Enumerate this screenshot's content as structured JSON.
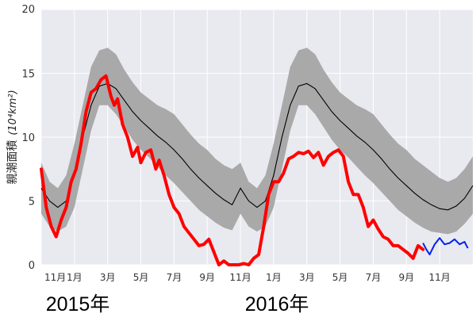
{
  "chart_data": {
    "type": "line",
    "ylabel_text": "親潮面積",
    "ylabel_unit": "(10⁴km²)",
    "ylim": [
      0,
      20
    ],
    "yticks": [
      0,
      5,
      10,
      15,
      20
    ],
    "xlim": [
      0,
      26
    ],
    "xticks": [
      {
        "x": 0,
        "label": "11月"
      },
      {
        "x": 2,
        "label": "1月"
      },
      {
        "x": 4,
        "label": "3月"
      },
      {
        "x": 6,
        "label": "5月"
      },
      {
        "x": 8,
        "label": "7月"
      },
      {
        "x": 10,
        "label": "9月"
      },
      {
        "x": 12,
        "label": "11月"
      },
      {
        "x": 14,
        "label": "1月"
      },
      {
        "x": 16,
        "label": "3月"
      },
      {
        "x": 18,
        "label": "5月"
      },
      {
        "x": 20,
        "label": "7月"
      },
      {
        "x": 22,
        "label": "9月"
      },
      {
        "x": 24,
        "label": "11月"
      }
    ],
    "year_labels": [
      {
        "x": 2.2,
        "label": "2015年"
      },
      {
        "x": 14.2,
        "label": "2016年"
      }
    ],
    "grid": true,
    "colors": {
      "background": "#e9e9f0",
      "grid": "#ffffff",
      "band": "#a9a9a9",
      "mean": "#000000",
      "obs": "#ff0000",
      "recent": "#0022ee"
    },
    "band": {
      "x": [
        0,
        0.5,
        1,
        1.5,
        2,
        2.5,
        3,
        3.5,
        4,
        4.5,
        5,
        5.5,
        6,
        6.5,
        7,
        7.5,
        8,
        8.5,
        9,
        9.5,
        10,
        10.5,
        11,
        11.5,
        12,
        12.5,
        13,
        13.5,
        14,
        14.5,
        15,
        15.5,
        16,
        16.5,
        17,
        17.5,
        18,
        18.5,
        19,
        19.5,
        20,
        20.5,
        21,
        21.5,
        22,
        22.5,
        23,
        23.5,
        24,
        24.5,
        25,
        25.5,
        26
      ],
      "upper": [
        8,
        6.5,
        6,
        7,
        9.5,
        12.5,
        15.5,
        16.8,
        17,
        16.5,
        15.3,
        14.3,
        13.5,
        13,
        12.5,
        12.2,
        11.8,
        11,
        10.2,
        9.5,
        9,
        8.3,
        7.8,
        7.5,
        8,
        6.5,
        6,
        7,
        9.5,
        12.5,
        15.5,
        16.8,
        17,
        16.5,
        15.3,
        14.3,
        13.5,
        13,
        12.5,
        12.2,
        11.8,
        11,
        10.2,
        9.5,
        9,
        8.3,
        7.8,
        7.3,
        6.8,
        6.5,
        6.8,
        7.5,
        8.5
      ],
      "lower": [
        4,
        3,
        2.6,
        3,
        4.5,
        7.5,
        10.5,
        12.5,
        12.5,
        11.8,
        10.8,
        9.8,
        9,
        8.4,
        7.7,
        7,
        6.4,
        5.7,
        5,
        4.3,
        3.8,
        3.3,
        2.9,
        2.7,
        4,
        3,
        2.6,
        3,
        4.5,
        7.5,
        10.5,
        12.5,
        12.5,
        11.8,
        10.8,
        9.8,
        9,
        8.4,
        7.7,
        7,
        6.4,
        5.7,
        5,
        4.3,
        3.8,
        3.3,
        2.9,
        2.6,
        2.5,
        2.4,
        2.6,
        3.2,
        4
      ]
    },
    "series": [
      {
        "x": [
          0,
          0.5,
          1,
          1.5,
          2,
          2.5,
          3,
          3.5,
          4,
          4.5,
          5,
          5.5,
          6,
          6.5,
          7,
          7.5,
          8,
          8.5,
          9,
          9.5,
          10,
          10.5,
          11,
          11.5,
          12,
          12.5,
          13,
          13.5,
          14,
          14.5,
          15,
          15.5,
          16,
          16.5,
          17,
          17.5,
          18,
          18.5,
          19,
          19.5,
          20,
          20.5,
          21,
          21.5,
          22,
          22.5,
          23,
          23.5,
          24,
          24.5,
          25,
          25.5,
          26
        ],
        "values": [
          6,
          5,
          4.5,
          5,
          7,
          10,
          12.5,
          14,
          14.2,
          13.8,
          12.9,
          12,
          11.3,
          10.7,
          10.1,
          9.6,
          9,
          8.3,
          7.5,
          6.8,
          6.2,
          5.6,
          5.1,
          4.7,
          6,
          5,
          4.5,
          5,
          7,
          10,
          12.5,
          14,
          14.2,
          13.8,
          12.9,
          12,
          11.3,
          10.7,
          10.1,
          9.6,
          9,
          8.3,
          7.5,
          6.8,
          6.2,
          5.6,
          5.1,
          4.7,
          4.4,
          4.3,
          4.6,
          5.2,
          6.2
        ]
      },
      {
        "x": [
          0,
          0.3,
          0.6,
          0.9,
          1.2,
          1.5,
          1.8,
          2.1,
          2.4,
          2.7,
          3.0,
          3.3,
          3.6,
          3.9,
          4.2,
          4.4,
          4.6,
          4.9,
          5.2,
          5.5,
          5.8,
          6.0,
          6.3,
          6.6,
          6.9,
          7.1,
          7.4,
          7.7,
          8.0,
          8.3,
          8.6,
          8.9,
          9.2,
          9.5,
          9.8,
          10.1,
          10.4,
          10.7,
          11.0,
          11.3,
          11.6,
          11.9,
          12.2,
          12.5,
          12.8,
          13.1,
          13.4,
          13.7,
          14.0,
          14.3,
          14.6,
          14.9,
          15.2,
          15.5,
          15.8,
          16.1,
          16.4,
          16.7,
          17.0,
          17.3,
          17.6,
          17.9,
          18.2,
          18.5,
          18.8,
          19.1,
          19.4,
          19.7,
          20.0,
          20.3,
          20.6,
          20.9,
          21.2,
          21.5,
          21.8,
          22.1,
          22.4,
          22.7,
          23.0
        ],
        "values": [
          7.5,
          4.5,
          3,
          2.2,
          3.5,
          4.5,
          6.5,
          7.5,
          9.5,
          12,
          13.5,
          13.8,
          14.5,
          14.8,
          13.2,
          12.5,
          13,
          11,
          10,
          8.5,
          9.2,
          8,
          8.8,
          9,
          7.5,
          8.2,
          7,
          5.5,
          4.5,
          4,
          3,
          2.5,
          2,
          1.5,
          1.6,
          2,
          1,
          0,
          0.3,
          0,
          0,
          0,
          0.1,
          0,
          0.5,
          0.8,
          3,
          5.5,
          6.5,
          6.5,
          7.2,
          8.3,
          8.5,
          8.8,
          8.7,
          8.9,
          8.4,
          8.8,
          7.8,
          8.5,
          8.8,
          9,
          8.5,
          6.5,
          5.5,
          5.5,
          4.5,
          3,
          3.5,
          2.8,
          2.2,
          2,
          1.5,
          1.5,
          1.2,
          0.9,
          0.5,
          1.5,
          1.2
        ]
      },
      {
        "x": [
          23.0,
          23.2,
          23.4,
          23.7,
          24.0,
          24.3,
          24.6,
          24.9,
          25.2,
          25.5,
          25.7
        ],
        "values": [
          1.7,
          1.2,
          0.8,
          1.6,
          2.1,
          1.6,
          1.7,
          2.0,
          1.6,
          1.8,
          1.3
        ]
      }
    ]
  }
}
